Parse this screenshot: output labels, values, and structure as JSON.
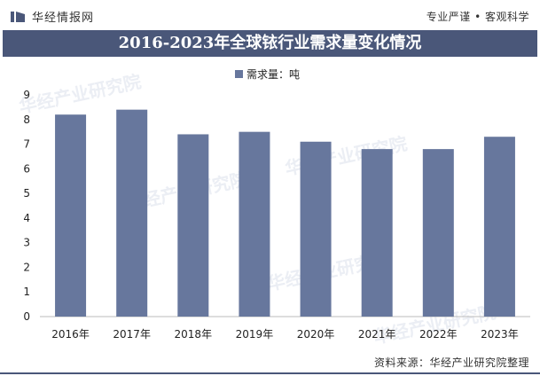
{
  "header": {
    "brand": "华经情报网",
    "tagline": "专业严谨 • 客观科学"
  },
  "watermark_text": "华经产业研究院",
  "watermark_url": "www.huaon.com",
  "chart_data": {
    "type": "bar",
    "title": "2016-2023年全球铱行业需求量变化情况",
    "categories": [
      "2016年",
      "2017年",
      "2018年",
      "2019年",
      "2020年",
      "2021年",
      "2022年",
      "2023年"
    ],
    "series": [
      {
        "name": "需求量：吨",
        "values": [
          8.2,
          8.4,
          7.4,
          7.5,
          7.1,
          6.8,
          6.8,
          7.3
        ],
        "color": "#67779d"
      }
    ],
    "ylim": [
      0,
      9
    ],
    "yticks": [
      0,
      1,
      2,
      3,
      4,
      5,
      6,
      7,
      8,
      9
    ],
    "grid": false,
    "legend_position": "top-center"
  },
  "footer": {
    "source": "资料来源：华经产业研究院整理"
  },
  "colors": {
    "title_bar": "#4a5779",
    "bar": "#67779d"
  }
}
